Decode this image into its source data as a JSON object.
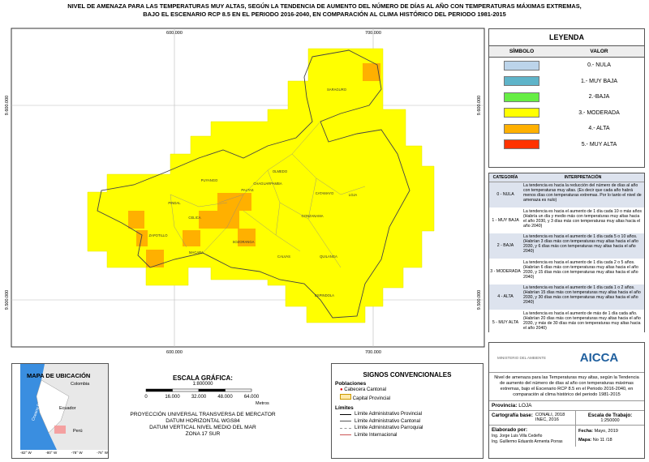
{
  "header": {
    "title": [
      "NIVEL DE AMENAZA PARA LAS TEMPERATURAS MUY ALTAS, SEGÚN LA TENDENCIA DE AUMENTO DEL NÚMERO DE DÍAS AL AÑO CON TEMPERATURAS MÁXIMAS EXTREMAS,",
      "BAJO EL ESCENARIO RCP 8.5 EN EL PERIODO 2016-2040, EN COMPARACIÓN AL CLIMA HISTÓRICO DEL PERIODO 1981-2015"
    ]
  },
  "map": {
    "x_coords": [
      "600.000",
      "700.000"
    ],
    "y_coords": [
      "9.600.000",
      "9.500.000"
    ],
    "places": [
      "SARAGURO",
      "PUYANGO",
      "OLMEDO",
      "CHAGUARPAMBA",
      "PALTAS",
      "CATAMAYO",
      "LOJA",
      "PINDAL",
      "CELICA",
      "ZAPOTILLO",
      "MACARA",
      "SOZORANGA",
      "GONZANAMA",
      "CALVAS",
      "QUILANGA",
      "ESPINDOLA"
    ]
  },
  "legend": {
    "title": "LEYENDA",
    "headers": [
      "SÍMBOLO",
      "VALOR"
    ],
    "items": [
      {
        "label": "0.- NULA",
        "color": "#bcd4ea"
      },
      {
        "label": "1.- MUY BAJA",
        "color": "#5fb4c9"
      },
      {
        "label": "2.-BAJA",
        "color": "#66ee44"
      },
      {
        "label": "3.- MODERADA",
        "color": "#ffff00"
      },
      {
        "label": "4.- ALTA",
        "color": "#ffb000"
      },
      {
        "label": "5.- MUY ALTA",
        "color": "#ff3300"
      }
    ]
  },
  "interpretation": {
    "headers": [
      "CATEGORÍA",
      "INTERPRETACIÓN"
    ],
    "rows": [
      [
        "0 - NULA",
        "La tendencia es hacia la reducción del número de días al año con temperaturas muy altas. (Es decir que cada año habrá menos días con temperaturas extremas. Por lo tanto el nivel de amenaza es nulo)"
      ],
      [
        "1 - MUY BAJA",
        "La tendencia es hacia el aumento de 1 día cada 10 o más años (Habría un día y medio más con temperaturas muy altas hacia el año 2030, y 3 días más con temperaturas muy altas hacia el año 2040)"
      ],
      [
        "2 - BAJA",
        "La tendencia es hacia el aumento de 1 día cada 5 o 10 años. (Habrían 3 días más con temperaturas muy altas hacia el año 2030, y 6 días más con temperaturas muy altas hacia el año 2040)"
      ],
      [
        "3 - MODERADA",
        "La tendencia es hacia el aumento de 1 día cada 2 o 5 años. (Habrían 6 días más con temperaturas muy altas hacia el año 2030, y 15 días más con temperaturas muy altas hacia el año 2040)"
      ],
      [
        "4 - ALTA",
        "La tendencia es hacia el aumento de 1 día cada 1 o 2 años. (Habrían 15 días más con temperaturas muy altas hacia el año 2030, y 30 días más con temperaturas muy altas hacia el año 2040)"
      ],
      [
        "5 - MUY ALTA",
        "La tendencia es hacia el aumento de más de 1 día cada año. (Habrían 20 días más con temperaturas muy altas hacia el año 2030, y más de 30 días más con temperaturas muy altas hacia el año 2040)"
      ]
    ]
  },
  "location_map": {
    "title": "MAPA DE UBICACIÓN",
    "labels": [
      "Colombia",
      "Ecuador",
      "Perú",
      "Oceano Pacifico"
    ],
    "lon_ticks": [
      "-82° W",
      "-80° W",
      "-78° W",
      "-76° W"
    ]
  },
  "scale": {
    "title": "ESCALA GRÁFICA:",
    "ratio": "1:800000",
    "ticks": [
      "0",
      "16.000",
      "32.000",
      "48.000",
      "64.000"
    ],
    "unit": "Metros",
    "projection": [
      "PROYECCIÓN UNIVERSAL TRANSVERSA DE MERCATOR",
      "DATUM HORIZONTAL WGS84",
      "DATUM VERTICAL NIVEL MEDIO DEL MAR",
      "ZONA 17 SUR"
    ]
  },
  "signs": {
    "title": "SIGNOS CONVENCIONALES",
    "populations": "Poblaciones",
    "pop_items": [
      "Cabecera Cantonal",
      "Capital Provincial"
    ],
    "limits": "Límites",
    "limit_items": [
      "Límite Administrativo Provincial",
      "Límite Administrativo Cantonal",
      "Límite Administrativo Parroquial",
      "Límite Internacional"
    ]
  },
  "info": {
    "ministry": "MINISTERIO DEL AMBIENTE",
    "logo": "AICCA",
    "description": "Nivel de amenaza para las Temperaturas muy altas, según la Tendencia de aumento del número de días al año con temperaturas máximas extremas, bajo el Escenario RCP 8.5 en el Periodo 2016-2040, en comparación al clima histórico del periodo 1981-2015",
    "province_label": "Provincia:",
    "province": "LOJA",
    "base_label": "Cartografía base:",
    "base": [
      "CONALI, 2018",
      "INEC, 2016"
    ],
    "scale_label": "Escala de Trabajo:",
    "scale": "1:250000",
    "author_label": "Elaborado por:",
    "authors": [
      "Ing. Jorge Luis Villa Cedeño",
      "Ing. Guillermo Eduardo Armenta Porras"
    ],
    "date_label": "Fecha:",
    "date": "Mayo, 2019",
    "map_label": "Mapa:",
    "map_no": "No 11 /18"
  }
}
